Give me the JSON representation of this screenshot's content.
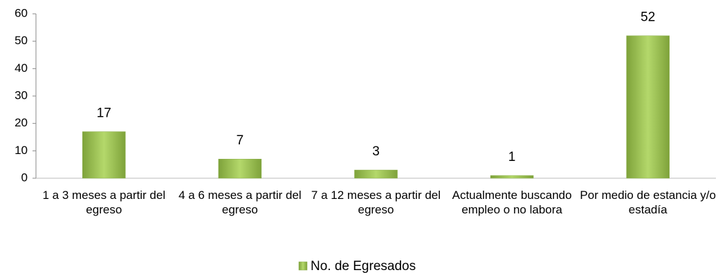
{
  "chart_data": {
    "type": "bar",
    "categories": [
      "1 a 3 meses a partir del egreso",
      "4 a 6 meses a partir del egreso",
      "7 a 12 meses a partir del egreso",
      "Actualmente buscando empleo o no labora",
      "Por medio de estancia y/o estadía"
    ],
    "series": [
      {
        "name": "No. de Egresados",
        "color": "#9bbb59",
        "values": [
          17,
          7,
          3,
          1,
          52
        ]
      }
    ],
    "ylim": [
      0,
      60
    ],
    "yticks": [
      0,
      10,
      20,
      30,
      40,
      50,
      60
    ],
    "grid": false,
    "legend": "bottom"
  }
}
